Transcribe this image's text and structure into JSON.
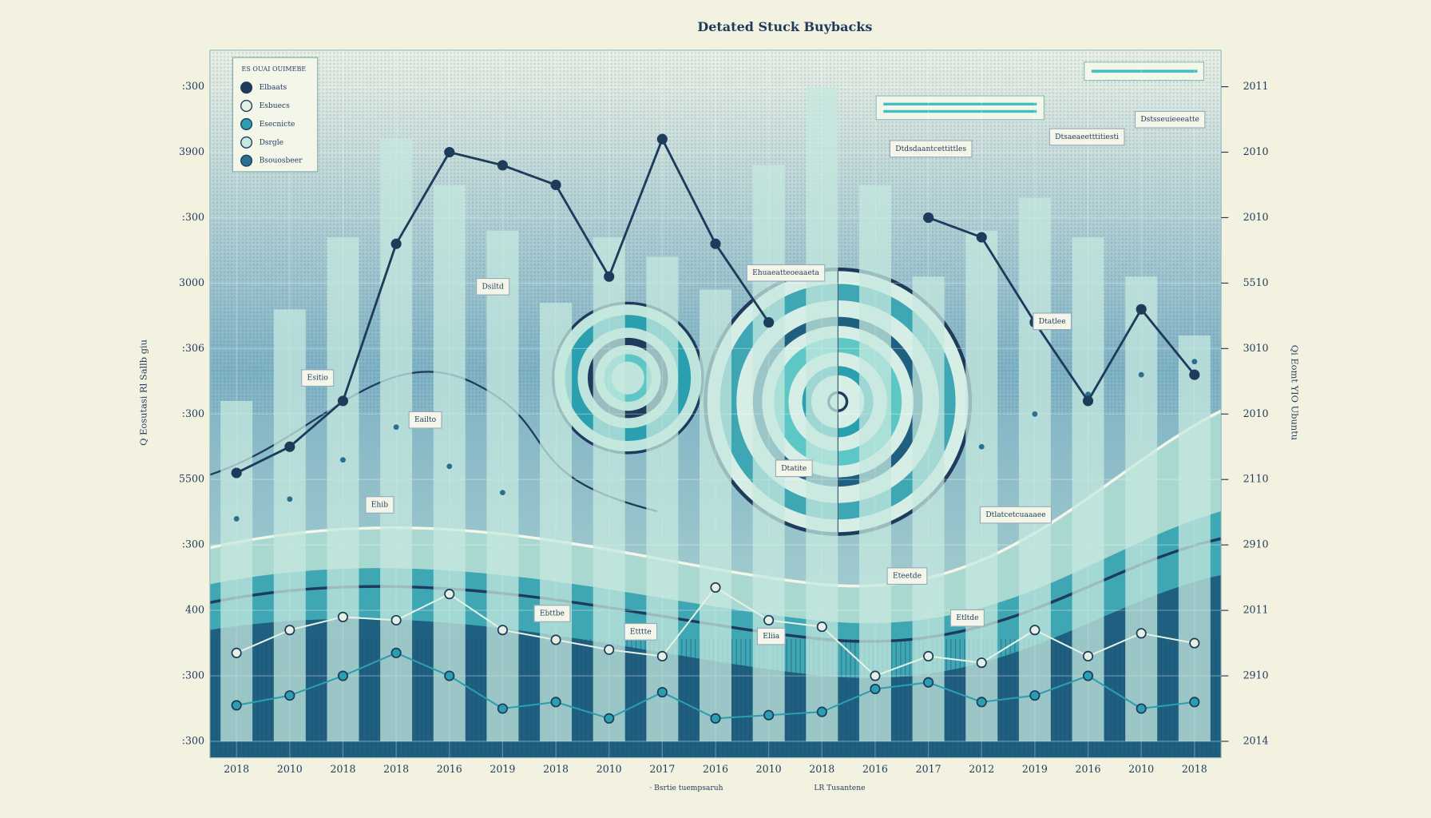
{
  "chart_data": {
    "type": "line",
    "title": "Detated Stuck Buybacks",
    "y_label": "Q Eosutasi Rl Sallb giu",
    "y2_label": "Qi Eomt YIO Ubuntu",
    "categories": [
      "2018",
      "2010",
      "2018",
      "2018",
      "2016",
      "2019",
      "2018",
      "2010",
      "2017",
      "2016",
      "2010",
      "2018",
      "2016",
      "2017",
      "2012",
      "2019",
      "2016",
      "2010",
      "2018"
    ],
    "ylim": [
      0,
      10
    ],
    "yticks": [
      {
        "value": 0,
        "label": ":300"
      },
      {
        "value": 1,
        "label": ":300"
      },
      {
        "value": 2,
        "label": "400"
      },
      {
        "value": 3,
        "label": ":300"
      },
      {
        "value": 4,
        "label": "5500"
      },
      {
        "value": 5,
        "label": ":300"
      },
      {
        "value": 6,
        "label": ":306"
      },
      {
        "value": 7,
        "label": "3000"
      },
      {
        "value": 8,
        "label": ":300"
      },
      {
        "value": 9,
        "label": "3900"
      },
      {
        "value": 10,
        "label": ":300"
      }
    ],
    "y2lim": [
      0,
      10
    ],
    "y2ticks": [
      {
        "value": 0,
        "label": "2014"
      },
      {
        "value": 1,
        "label": "2910"
      },
      {
        "value": 2,
        "label": "2011"
      },
      {
        "value": 3,
        "label": "2910"
      },
      {
        "value": 4,
        "label": "2110"
      },
      {
        "value": 5,
        "label": "2010"
      },
      {
        "value": 6,
        "label": "3010"
      },
      {
        "value": 7,
        "label": "5510"
      },
      {
        "value": 8,
        "label": "2010"
      },
      {
        "value": 9,
        "label": "2010"
      },
      {
        "value": 10,
        "label": "2011"
      }
    ],
    "grid": true,
    "legend": "upper left",
    "legend_title": "ES OUAI OUIMEBE",
    "series": [
      {
        "name": "Elbaats",
        "color": "#1f3b5c",
        "style": "line",
        "values": [
          4.1,
          4.5,
          5.2,
          7.6,
          9.0,
          8.8,
          8.5,
          7.1,
          9.2,
          7.6,
          6.4,
          null,
          null,
          8.0,
          7.7,
          6.4,
          5.2,
          6.6,
          5.6
        ]
      },
      {
        "name": "Esbuecs",
        "color": "#e4f1e4",
        "style": "line",
        "values": [
          1.35,
          1.7,
          1.9,
          1.85,
          2.25,
          1.7,
          1.55,
          1.4,
          1.3,
          2.35,
          1.85,
          1.75,
          1.0,
          1.3,
          1.2,
          1.7,
          1.3,
          1.65,
          1.5
        ]
      },
      {
        "name": "Esecnicte",
        "color": "#2a9fb0",
        "style": "line",
        "values": [
          0.55,
          0.7,
          1.0,
          1.35,
          1.0,
          0.5,
          0.6,
          0.35,
          0.75,
          0.35,
          0.4,
          0.45,
          0.8,
          0.9,
          0.6,
          0.7,
          1.0,
          0.5,
          0.6
        ]
      },
      {
        "name": "Dsrgle",
        "color": "#c6e8df",
        "style": "bars",
        "values": [
          5.2,
          6.6,
          7.7,
          9.2,
          8.5,
          7.8,
          6.7,
          7.7,
          7.4,
          6.9,
          8.8,
          10.0,
          8.5,
          7.1,
          7.8,
          8.3,
          7.7,
          7.1,
          6.2
        ]
      },
      {
        "name": "Bsouosbeer",
        "color": "#2b6f8f",
        "style": "dots",
        "values": [
          3.4,
          3.7,
          4.3,
          4.8,
          4.2,
          3.8,
          null,
          null,
          null,
          null,
          null,
          null,
          null,
          null,
          4.5,
          5.0,
          5.3,
          5.6,
          5.8
        ]
      }
    ],
    "annotations": [
      "Dsiltd",
      "Esitio",
      "Eailto",
      "Ehib",
      "Ehuaeatteoeaaeta",
      "Dtdsdaantcettittles",
      "Dtsaeaeetttitiesti",
      "Dstsseuieeeatte",
      "Dtatlee",
      "Dtatite",
      "Dtlatcetcuaaaee",
      "Eteetde",
      "Ebttbe",
      "Etttte",
      "Eliia",
      "Etltde"
    ],
    "footnotes": [
      "· Bsrtie tuempsaruh",
      "LR Tusantene"
    ]
  }
}
